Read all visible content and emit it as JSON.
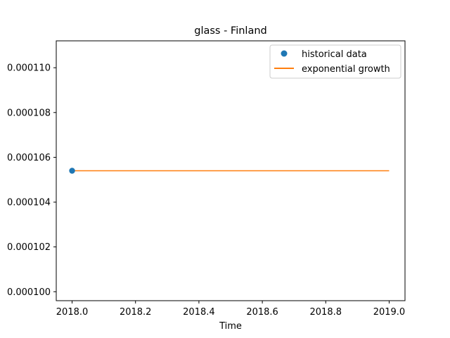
{
  "chart_data": {
    "type": "line",
    "title": "glass - Finland",
    "xlabel": "Time",
    "ylabel": "",
    "xlim": [
      1977.95,
      2019.05
    ],
    "ylim": [
      9.96e-05,
      0.0001112
    ],
    "x_ticks": [
      {
        "value": 2018.0,
        "label": "2018.0"
      },
      {
        "value": 2018.2,
        "label": "2018.2"
      },
      {
        "value": 2018.4,
        "label": "2018.4"
      },
      {
        "value": 2018.6,
        "label": "2018.6"
      },
      {
        "value": 2018.8,
        "label": "2018.8"
      },
      {
        "value": 2019.0,
        "label": "2019.0"
      }
    ],
    "y_ticks": [
      {
        "value": 0.0001,
        "label": "0.000100"
      },
      {
        "value": 0.000102,
        "label": "0.000102"
      },
      {
        "value": 0.000104,
        "label": "0.000104"
      },
      {
        "value": 0.000106,
        "label": "0.000106"
      },
      {
        "value": 0.000108,
        "label": "0.000108"
      },
      {
        "value": 0.00011,
        "label": "0.000110"
      }
    ],
    "grid": false,
    "legend_position": "top-right",
    "series": [
      {
        "name": "historical data",
        "kind": "scatter",
        "color": "#1f77b4",
        "points": [
          {
            "x": 2018.0,
            "y": 0.0001054
          }
        ]
      },
      {
        "name": "exponential growth",
        "kind": "line",
        "color": "#ff7f0e",
        "points": [
          {
            "x": 2018.0,
            "y": 0.0001054
          },
          {
            "x": 2019.0,
            "y": 0.0001054
          }
        ]
      }
    ]
  }
}
